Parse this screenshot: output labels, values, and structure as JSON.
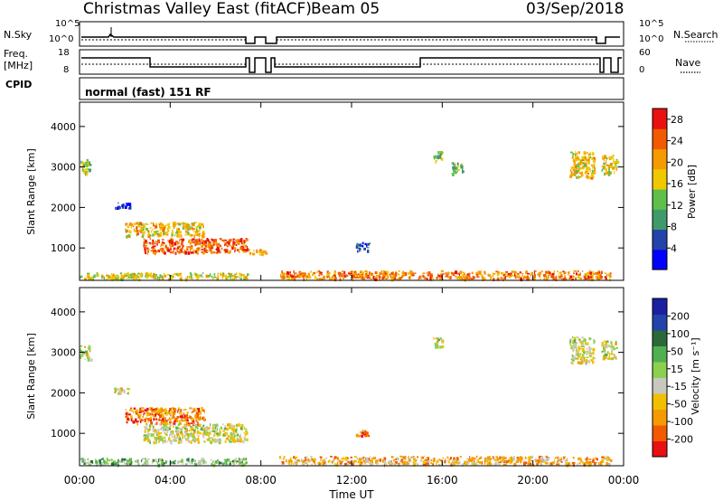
{
  "header": {
    "station": "Christmas Valley East (fitACF)",
    "beam": "Beam 05",
    "date": "03/Sep/2018"
  },
  "mode_label": "normal (fast) 151 RF",
  "small_panels": {
    "noise": {
      "left_label": "N.Sky",
      "right_label": "N.Search",
      "left_ticks": [
        "10^5",
        "10^0"
      ],
      "right_ticks": [
        "10^5",
        "10^0"
      ]
    },
    "freq": {
      "left_label_line1": "Freq.",
      "left_label_line2": "[MHz]",
      "right_label": "Nave",
      "left_ticks": [
        "18",
        "8"
      ],
      "right_ticks": [
        "60",
        "0"
      ]
    },
    "cpid_label": "CPID"
  },
  "colors": {
    "power": [
      "#0000ff",
      "#2244aa",
      "#3f9a6a",
      "#5fbf4a",
      "#f0c800",
      "#f59a00",
      "#f25a00",
      "#e81010"
    ],
    "velocity": [
      "#e81010",
      "#f25a00",
      "#f59a00",
      "#f0c000",
      "#c8c8c0",
      "#8cd050",
      "#50b050",
      "#2a6a3a",
      "#2244aa",
      "#1a20a0"
    ]
  },
  "chart_data": [
    {
      "type": "heatmap",
      "name": "power",
      "ylabel": "Slant Range [km]",
      "yticks": [
        "1000",
        "2000",
        "3000",
        "4000"
      ],
      "ylim": [
        200,
        4600
      ],
      "xlim": [
        0,
        24
      ],
      "colorbar_label": "Power [dB]",
      "colorbar_ticks": [
        "4",
        "8",
        "12",
        "16",
        "20",
        "24",
        "28"
      ],
      "colorbar_range": [
        0,
        30
      ],
      "regions": [
        {
          "t0": 0.0,
          "t1": 0.5,
          "r0": 2850,
          "r1": 3200,
          "level": 0.45
        },
        {
          "t0": 1.5,
          "t1": 2.2,
          "r0": 2000,
          "r1": 2150,
          "level": 0.15
        },
        {
          "t0": 2.0,
          "t1": 5.5,
          "r0": 1300,
          "r1": 1650,
          "level": 0.6
        },
        {
          "t0": 2.8,
          "t1": 7.4,
          "r0": 900,
          "r1": 1250,
          "level": 0.8
        },
        {
          "t0": 7.4,
          "t1": 8.2,
          "r0": 850,
          "r1": 1000,
          "level": 0.7
        },
        {
          "t0": 0.0,
          "t1": 7.4,
          "r0": 250,
          "r1": 400,
          "level": 0.55
        },
        {
          "t0": 8.8,
          "t1": 23.4,
          "r0": 250,
          "r1": 450,
          "level": 0.75
        },
        {
          "t0": 12.1,
          "t1": 12.8,
          "r0": 950,
          "r1": 1150,
          "level": 0.25
        },
        {
          "t0": 15.6,
          "t1": 16.0,
          "r0": 3150,
          "r1": 3400,
          "level": 0.45
        },
        {
          "t0": 16.4,
          "t1": 16.9,
          "r0": 2850,
          "r1": 3150,
          "level": 0.4
        },
        {
          "t0": 21.6,
          "t1": 22.7,
          "r0": 2750,
          "r1": 3400,
          "level": 0.6
        },
        {
          "t0": 23.0,
          "t1": 23.7,
          "r0": 2850,
          "r1": 3300,
          "level": 0.55
        }
      ]
    },
    {
      "type": "heatmap",
      "name": "velocity",
      "ylabel": "Slant Range [km]",
      "yticks": [
        "1000",
        "2000",
        "3000",
        "4000"
      ],
      "ylim": [
        200,
        4600
      ],
      "xlim": [
        0,
        24
      ],
      "xticks": [
        "00:00",
        "04:00",
        "08:00",
        "12:00",
        "16:00",
        "20:00",
        "00:00"
      ],
      "xlabel": "Time UT",
      "colorbar_label": "Velocity [m s⁻¹]",
      "colorbar_ticks": [
        "200",
        "100",
        "50",
        "15",
        "-15",
        "-50",
        "-100",
        "-200"
      ],
      "colorbar_range": [
        -250,
        250
      ],
      "regions": [
        {
          "t0": 0.0,
          "t1": 0.5,
          "r0": 2850,
          "r1": 3200,
          "level": 0.45
        },
        {
          "t0": 1.5,
          "t1": 2.2,
          "r0": 2000,
          "r1": 2150,
          "level": 0.45
        },
        {
          "t0": 2.0,
          "t1": 5.5,
          "r0": 1250,
          "r1": 1650,
          "level": 0.2
        },
        {
          "t0": 2.8,
          "t1": 7.4,
          "r0": 800,
          "r1": 1250,
          "level": 0.45
        },
        {
          "t0": 0.0,
          "t1": 7.4,
          "r0": 250,
          "r1": 400,
          "level": 0.6
        },
        {
          "t0": 8.8,
          "t1": 23.4,
          "r0": 250,
          "r1": 450,
          "level": 0.3
        },
        {
          "t0": 12.1,
          "t1": 12.8,
          "r0": 950,
          "r1": 1100,
          "level": 0.2
        },
        {
          "t0": 15.6,
          "t1": 16.0,
          "r0": 3150,
          "r1": 3400,
          "level": 0.45
        },
        {
          "t0": 21.6,
          "t1": 22.7,
          "r0": 2750,
          "r1": 3400,
          "level": 0.45
        },
        {
          "t0": 23.0,
          "t1": 23.7,
          "r0": 2850,
          "r1": 3300,
          "level": 0.45
        }
      ]
    }
  ]
}
